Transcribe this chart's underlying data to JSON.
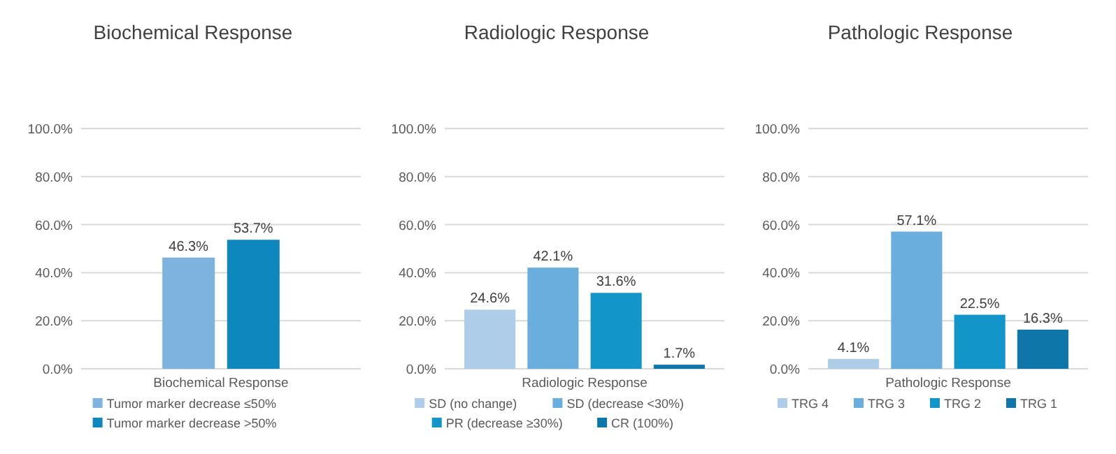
{
  "chart_data": [
    {
      "type": "bar",
      "title": "Biochemical Response",
      "xlabel": "Biochemical Response",
      "categories": [
        null,
        null
      ],
      "ylim": [
        0,
        100
      ],
      "yticks": [
        {
          "value": 0,
          "label": "0.0%"
        },
        {
          "value": 20,
          "label": "20.0%"
        },
        {
          "value": 40,
          "label": "40.0%"
        },
        {
          "value": 60,
          "label": "60.0%"
        },
        {
          "value": 80,
          "label": "80.0%"
        },
        {
          "value": 100,
          "label": "100.0%"
        }
      ],
      "grid": "y",
      "legend": "bottom",
      "series": [
        {
          "name": "Tumor marker decrease ≤50%",
          "color": "#7fb3df",
          "values": [
            46.3,
            null
          ],
          "value_labels": [
            "46.3%",
            null
          ]
        },
        {
          "name": "Tumor marker decrease >50%",
          "color": "#0e86be",
          "values": [
            null,
            53.7
          ],
          "value_labels": [
            null,
            "53.7%"
          ]
        }
      ]
    },
    {
      "type": "bar",
      "title": "Radiologic Response",
      "xlabel": "Radiologic Response",
      "categories": [
        null,
        null,
        null,
        null
      ],
      "ylim": [
        0,
        100
      ],
      "yticks": [
        {
          "value": 0,
          "label": "0.0%"
        },
        {
          "value": 20,
          "label": "20.0%"
        },
        {
          "value": 40,
          "label": "40.0%"
        },
        {
          "value": 60,
          "label": "60.0%"
        },
        {
          "value": 80,
          "label": "80.0%"
        },
        {
          "value": 100,
          "label": "100.0%"
        }
      ],
      "grid": "y",
      "legend": "bottom",
      "series": [
        {
          "name": "SD (no change)",
          "color": "#aecde9",
          "values": [
            24.6,
            null,
            null,
            null
          ],
          "value_labels": [
            "24.6%",
            null,
            null,
            null
          ]
        },
        {
          "name": "SD (decrease <30%)",
          "color": "#6aaede",
          "values": [
            null,
            42.1,
            null,
            null
          ],
          "value_labels": [
            null,
            "42.1%",
            null,
            null
          ]
        },
        {
          "name": "PR (decrease ≥30%)",
          "color": "#1295c8",
          "values": [
            null,
            null,
            31.6,
            null
          ],
          "value_labels": [
            null,
            null,
            "31.6%",
            null
          ]
        },
        {
          "name": "CR (100%)",
          "color": "#0e76a8",
          "values": [
            null,
            null,
            null,
            1.7
          ],
          "value_labels": [
            null,
            null,
            null,
            "1.7%"
          ]
        }
      ]
    },
    {
      "type": "bar",
      "title": "Pathologic Response",
      "xlabel": "Pathologic Response",
      "categories": [
        null,
        null,
        null,
        null
      ],
      "ylim": [
        0,
        100
      ],
      "yticks": [
        {
          "value": 0,
          "label": "0.0%"
        },
        {
          "value": 20,
          "label": "20.0%"
        },
        {
          "value": 40,
          "label": "40.0%"
        },
        {
          "value": 60,
          "label": "60.0%"
        },
        {
          "value": 80,
          "label": "80.0%"
        },
        {
          "value": 100,
          "label": "100.0%"
        }
      ],
      "grid": "y",
      "legend": "bottom",
      "series": [
        {
          "name": "TRG 4",
          "color": "#aecde9",
          "values": [
            4.1,
            null,
            null,
            null
          ],
          "value_labels": [
            "4.1%",
            null,
            null,
            null
          ]
        },
        {
          "name": "TRG 3",
          "color": "#6aaede",
          "values": [
            null,
            57.1,
            null,
            null
          ],
          "value_labels": [
            null,
            "57.1%",
            null,
            null
          ]
        },
        {
          "name": "TRG 2",
          "color": "#1295c8",
          "values": [
            null,
            null,
            22.5,
            null
          ],
          "value_labels": [
            null,
            null,
            "22.5%",
            null
          ]
        },
        {
          "name": "TRG 1",
          "color": "#0e76a8",
          "values": [
            null,
            null,
            null,
            16.3
          ],
          "value_labels": [
            null,
            null,
            null,
            "16.3%"
          ]
        }
      ]
    }
  ]
}
